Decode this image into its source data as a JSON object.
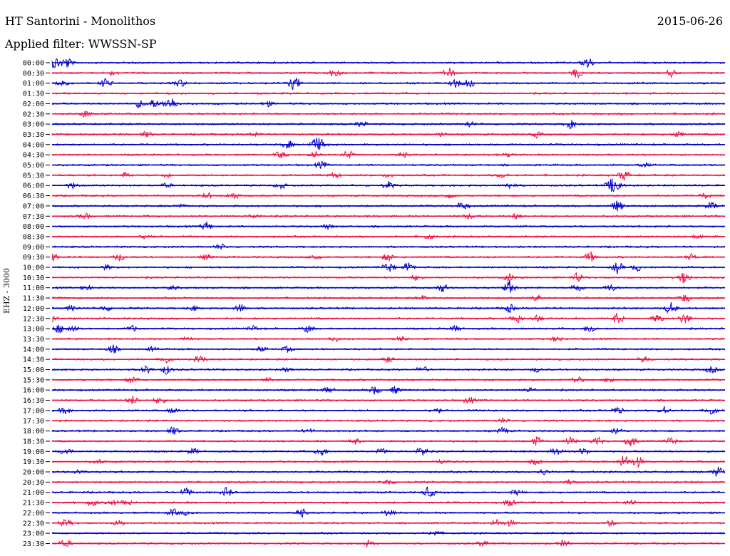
{
  "header": {
    "title": "HT Santorini - Monolithos",
    "date": "2015-06-26",
    "filter": "Applied filter: WWSSN-SP",
    "station": "EHZ - 3000"
  },
  "chart_data": {
    "type": "line",
    "title": "HT Santorini - Monolithos",
    "ylabel": "EHZ - 3000",
    "trace_colors": [
      "#0000cc",
      "#ee1144"
    ],
    "rows": [
      {
        "label": "00:00",
        "events": [
          [
            0.005,
            0.9
          ],
          [
            0.022,
            0.8
          ],
          [
            0.795,
            0.9
          ]
        ]
      },
      {
        "label": "00:30",
        "events": [
          [
            0.09,
            0.3
          ],
          [
            0.42,
            0.6
          ],
          [
            0.59,
            0.7
          ],
          [
            0.78,
            0.7
          ],
          [
            0.92,
            0.5
          ]
        ]
      },
      {
        "label": "01:00",
        "events": [
          [
            0.015,
            0.6
          ],
          [
            0.08,
            0.7
          ],
          [
            0.19,
            0.6
          ],
          [
            0.36,
            1.0
          ],
          [
            0.6,
            0.7
          ],
          [
            0.62,
            0.6
          ]
        ]
      },
      {
        "label": "01:30",
        "events": []
      },
      {
        "label": "02:00",
        "events": [
          [
            0.13,
            0.5
          ],
          [
            0.15,
            0.6
          ],
          [
            0.17,
            0.5
          ],
          [
            0.18,
            0.7
          ],
          [
            0.32,
            0.4
          ]
        ]
      },
      {
        "label": "02:30",
        "events": [
          [
            0.05,
            0.5
          ]
        ]
      },
      {
        "label": "03:00",
        "events": [
          [
            0.46,
            0.4
          ],
          [
            0.62,
            0.4
          ],
          [
            0.77,
            0.6
          ]
        ]
      },
      {
        "label": "03:30",
        "events": [
          [
            0.14,
            0.4
          ],
          [
            0.3,
            0.3
          ],
          [
            0.58,
            0.3
          ],
          [
            0.72,
            0.4
          ],
          [
            0.93,
            0.4
          ]
        ]
      },
      {
        "label": "04:00",
        "events": [
          [
            0.35,
            0.6
          ],
          [
            0.39,
            0.7
          ],
          [
            0.4,
            0.7
          ]
        ]
      },
      {
        "label": "04:30",
        "events": [
          [
            0.34,
            0.5
          ],
          [
            0.39,
            0.6
          ],
          [
            0.44,
            0.6
          ],
          [
            0.52,
            0.4
          ],
          [
            0.68,
            0.3
          ]
        ]
      },
      {
        "label": "05:00",
        "events": [
          [
            0.4,
            0.5
          ],
          [
            0.88,
            0.3
          ]
        ]
      },
      {
        "label": "05:30",
        "events": [
          [
            0.11,
            0.4
          ],
          [
            0.17,
            0.3
          ],
          [
            0.42,
            0.4
          ],
          [
            0.5,
            0.3
          ],
          [
            0.67,
            0.4
          ],
          [
            0.85,
            0.7
          ]
        ]
      },
      {
        "label": "06:00",
        "events": [
          [
            0.03,
            0.4
          ],
          [
            0.17,
            0.3
          ],
          [
            0.34,
            0.4
          ],
          [
            0.5,
            0.5
          ],
          [
            0.68,
            0.4
          ],
          [
            0.83,
            0.7
          ],
          [
            0.84,
            0.9
          ]
        ]
      },
      {
        "label": "06:30",
        "events": [
          [
            0.23,
            0.4
          ],
          [
            0.27,
            0.5
          ],
          [
            0.59,
            0.3
          ],
          [
            0.97,
            0.4
          ]
        ]
      },
      {
        "label": "07:00",
        "events": [
          [
            0.19,
            0.3
          ],
          [
            0.61,
            0.6
          ],
          [
            0.84,
            0.8
          ],
          [
            0.98,
            0.5
          ]
        ]
      },
      {
        "label": "07:30",
        "events": [
          [
            0.05,
            0.4
          ],
          [
            0.3,
            0.3
          ],
          [
            0.62,
            0.4
          ],
          [
            0.69,
            0.4
          ]
        ]
      },
      {
        "label": "08:00",
        "events": [
          [
            0.23,
            0.6
          ],
          [
            0.41,
            0.3
          ]
        ]
      },
      {
        "label": "08:30",
        "events": [
          [
            0.14,
            0.5
          ],
          [
            0.56,
            0.4
          ],
          [
            0.96,
            0.3
          ]
        ]
      },
      {
        "label": "09:00",
        "events": [
          [
            0.25,
            0.4
          ]
        ]
      },
      {
        "label": "09:30",
        "events": [
          [
            0.0,
            0.6
          ],
          [
            0.1,
            0.5
          ],
          [
            0.23,
            0.4
          ],
          [
            0.39,
            0.4
          ],
          [
            0.5,
            0.6
          ],
          [
            0.8,
            0.7
          ],
          [
            0.95,
            0.4
          ]
        ]
      },
      {
        "label": "10:00",
        "events": [
          [
            0.08,
            0.3
          ],
          [
            0.5,
            0.8
          ],
          [
            0.53,
            0.6
          ],
          [
            0.84,
            0.8
          ],
          [
            0.87,
            0.5
          ]
        ]
      },
      {
        "label": "10:30",
        "events": [
          [
            0.54,
            0.4
          ],
          [
            0.68,
            0.5
          ],
          [
            0.78,
            0.6
          ],
          [
            0.94,
            0.9
          ]
        ]
      },
      {
        "label": "11:00",
        "events": [
          [
            0.05,
            0.4
          ],
          [
            0.18,
            0.3
          ],
          [
            0.58,
            0.6
          ],
          [
            0.68,
            1.0
          ],
          [
            0.78,
            0.7
          ],
          [
            0.83,
            0.5
          ]
        ]
      },
      {
        "label": "11:30",
        "events": [
          [
            0.55,
            0.3
          ],
          [
            0.72,
            0.4
          ],
          [
            0.94,
            0.6
          ]
        ]
      },
      {
        "label": "12:00",
        "events": [
          [
            0.03,
            0.4
          ],
          [
            0.08,
            0.4
          ],
          [
            0.21,
            0.4
          ],
          [
            0.28,
            0.6
          ],
          [
            0.68,
            0.6
          ],
          [
            0.92,
            0.9
          ]
        ]
      },
      {
        "label": "12:30",
        "events": [
          [
            0.0,
            0.5
          ],
          [
            0.69,
            0.7
          ],
          [
            0.72,
            0.5
          ],
          [
            0.84,
            0.8
          ],
          [
            0.9,
            0.6
          ],
          [
            0.94,
            0.8
          ]
        ]
      },
      {
        "label": "13:00",
        "events": [
          [
            0.01,
            0.6
          ],
          [
            0.03,
            0.6
          ],
          [
            0.12,
            0.4
          ],
          [
            0.3,
            0.4
          ],
          [
            0.38,
            0.5
          ],
          [
            0.6,
            0.4
          ],
          [
            0.8,
            0.6
          ]
        ]
      },
      {
        "label": "13:30",
        "events": [
          [
            0.2,
            0.3
          ],
          [
            0.42,
            0.4
          ],
          [
            0.52,
            0.3
          ],
          [
            0.75,
            0.4
          ]
        ]
      },
      {
        "label": "14:00",
        "events": [
          [
            0.09,
            0.6
          ],
          [
            0.15,
            0.3
          ],
          [
            0.31,
            0.3
          ],
          [
            0.35,
            0.4
          ]
        ]
      },
      {
        "label": "14:30",
        "events": [
          [
            0.17,
            0.5
          ],
          [
            0.22,
            0.5
          ],
          [
            0.5,
            0.4
          ],
          [
            0.88,
            0.5
          ]
        ]
      },
      {
        "label": "15:00",
        "events": [
          [
            0.14,
            0.5
          ],
          [
            0.17,
            0.6
          ],
          [
            0.35,
            0.3
          ],
          [
            0.55,
            0.5
          ],
          [
            0.72,
            0.3
          ],
          [
            0.98,
            0.5
          ]
        ]
      },
      {
        "label": "15:30",
        "events": [
          [
            0.12,
            0.5
          ],
          [
            0.32,
            0.3
          ],
          [
            0.78,
            0.5
          ],
          [
            0.83,
            0.4
          ]
        ]
      },
      {
        "label": "16:00",
        "events": [
          [
            0.41,
            0.4
          ],
          [
            0.48,
            0.6
          ],
          [
            0.51,
            0.5
          ],
          [
            0.71,
            0.3
          ]
        ]
      },
      {
        "label": "16:30",
        "events": [
          [
            0.12,
            0.6
          ],
          [
            0.16,
            0.5
          ],
          [
            0.62,
            0.5
          ]
        ]
      },
      {
        "label": "17:00",
        "events": [
          [
            0.02,
            0.5
          ],
          [
            0.18,
            0.4
          ],
          [
            0.57,
            0.4
          ],
          [
            0.84,
            0.5
          ],
          [
            0.91,
            0.6
          ],
          [
            0.98,
            0.6
          ]
        ]
      },
      {
        "label": "17:30",
        "events": [
          [
            0.67,
            0.3
          ]
        ]
      },
      {
        "label": "18:00",
        "events": [
          [
            0.18,
            0.6
          ],
          [
            0.38,
            0.3
          ],
          [
            0.67,
            0.5
          ],
          [
            0.84,
            0.5
          ]
        ]
      },
      {
        "label": "18:30",
        "events": [
          [
            0.45,
            0.4
          ],
          [
            0.72,
            0.6
          ],
          [
            0.77,
            0.7
          ],
          [
            0.81,
            0.6
          ],
          [
            0.86,
            0.7
          ],
          [
            0.92,
            0.6
          ]
        ]
      },
      {
        "label": "19:00",
        "events": [
          [
            0.02,
            0.5
          ],
          [
            0.21,
            0.4
          ],
          [
            0.4,
            0.6
          ],
          [
            0.49,
            0.4
          ],
          [
            0.55,
            0.7
          ],
          [
            0.75,
            0.6
          ],
          [
            0.79,
            0.5
          ]
        ]
      },
      {
        "label": "19:30",
        "events": [
          [
            0.07,
            0.3
          ],
          [
            0.58,
            0.3
          ],
          [
            0.72,
            0.4
          ],
          [
            0.85,
            1.0
          ],
          [
            0.87,
            0.8
          ]
        ]
      },
      {
        "label": "20:00",
        "events": [
          [
            0.04,
            0.3
          ],
          [
            0.73,
            0.4
          ],
          [
            0.99,
            0.8
          ]
        ]
      },
      {
        "label": "20:30",
        "events": [
          [
            0.5,
            0.4
          ],
          [
            0.77,
            0.4
          ]
        ]
      },
      {
        "label": "21:00",
        "events": [
          [
            0.2,
            0.6
          ],
          [
            0.26,
            0.7
          ],
          [
            0.56,
            0.8
          ],
          [
            0.69,
            0.4
          ]
        ]
      },
      {
        "label": "21:30",
        "events": [
          [
            0.06,
            0.5
          ],
          [
            0.09,
            0.4
          ],
          [
            0.11,
            0.5
          ],
          [
            0.68,
            0.5
          ],
          [
            0.86,
            0.4
          ]
        ]
      },
      {
        "label": "22:00",
        "events": [
          [
            0.18,
            0.5
          ],
          [
            0.2,
            0.3
          ],
          [
            0.37,
            0.6
          ],
          [
            0.5,
            0.5
          ]
        ]
      },
      {
        "label": "22:30",
        "events": [
          [
            0.02,
            0.5
          ],
          [
            0.1,
            0.4
          ],
          [
            0.66,
            0.5
          ],
          [
            0.68,
            0.4
          ],
          [
            0.83,
            0.4
          ]
        ]
      },
      {
        "label": "23:00",
        "events": [
          [
            0.57,
            0.4
          ]
        ]
      },
      {
        "label": "23:30",
        "events": [
          [
            0.02,
            0.5
          ],
          [
            0.47,
            0.4
          ],
          [
            0.64,
            0.4
          ],
          [
            0.76,
            0.4
          ]
        ]
      }
    ]
  }
}
